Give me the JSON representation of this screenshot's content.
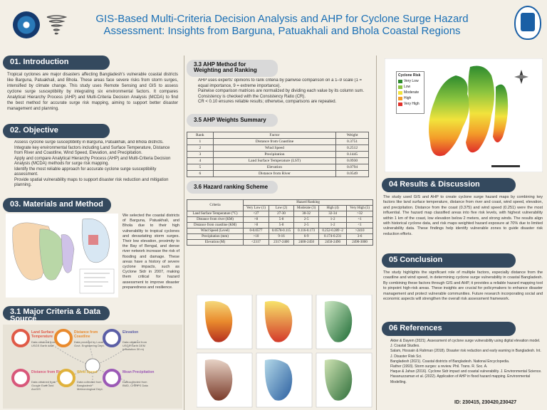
{
  "header": {
    "title_line1": "GIS-Based Multi-Criteria Decision Analysis and AHP for Cyclone Surge Hazard",
    "title_line2": "Assessment: Insights from Barguna, Patuakhali and Bhola Coastal Regions"
  },
  "intro": {
    "heading": "01. Introduction",
    "body": "Tropical cyclones are major disasters affecting Bangladesh's vulnerable coastal districts like Barguna, Patuakhali, and Bhola. These areas face severe risks from storm surges, intensified by climate change. This study uses Remote Sensing and GIS to assess cyclone surge susceptibility by integrating six environmental factors. It compares Analytical Hierarchy Process (AHP) and Multi-Criteria Decision Analysis (MCDA) to find the best method for accurate surge risk mapping, aiming to support better disaster management and planning."
  },
  "objective": {
    "heading": "02. Objective",
    "items": [
      "Assess cyclone surge susceptibility in Barguna, Patuakhali, and Bhola districts.",
      "Integrate key environmental factors including Land Surface Temperature, Distance from River and Coastline, Wind Speed, Elevation, and Precipitation.",
      "Apply and compare Analytical Hierarchy Process (AHP) and Multi-Criteria Decision Analysis (MCDA) methods for surge risk mapping.",
      "Identify the most reliable approach for accurate cyclone surge susceptibility assessment.",
      "Provide spatial vulnerability maps to support disaster risk reduction and mitigation planning."
    ]
  },
  "materials": {
    "heading": "03. Materials and Method",
    "body": "We selected the coastal districts of Barguna, Patuakhali, and Bhola due to their high vulnerability to tropical cyclones and devastating storm surges. Their low elevation, proximity to the Bay of Bengal, and dense river network increase the risk of flooding and damage. These areas have a history of severe cyclone impacts, such as Cyclone Sidr in 2007, making them critical for hazard assessment to improve disaster preparedness and resilience."
  },
  "criteria": {
    "heading": "3.1 Major Criteria & Data Source",
    "items": [
      {
        "name": "Land Surface Temperature",
        "src": "Data obtained from USGS Earth data",
        "color": "#e05a47"
      },
      {
        "name": "Distance from Coastline",
        "src": "Data provided by Local Govt. Engineering Dept.",
        "color": "#e98a2d"
      },
      {
        "name": "Elevation",
        "src": "Data obtained from USGS Earth DEM (resolution 30 m)",
        "color": "#5b5ea6"
      },
      {
        "name": "Distance from River",
        "src": "Data obtained from Google Earth and ArcGIS",
        "color": "#d8577a"
      },
      {
        "name": "Wind Speed",
        "src": "Data collected from Bangladesh Meteorological Dept.",
        "color": "#e0b23c"
      },
      {
        "name": "Mean Precipitation",
        "src": "Data collected from BMD, CHIRPS Data",
        "color": "#9b59b6"
      }
    ]
  },
  "ahp_method": {
    "heading": "3.3 AHP Method for Weighting and Ranking",
    "items": [
      "AHP uses experts' opinions to rank criteria by pairwise comparison on a 1–9 scale (1 = equal importance, 9 = extreme importance).",
      "Pairwise comparison matrices are normalized by dividing each value by its column sum.",
      "Consistency is checked with the Consistency Ratio (CR).",
      "CR < 0.10 ensures reliable results; otherwise, comparisons are repeated."
    ]
  },
  "ahp_summary": {
    "heading": "3.5 AHP Weights Summary",
    "columns": [
      "Rank",
      "Factor",
      "Weight"
    ],
    "rows": [
      [
        "1",
        "Distance from Coastline",
        "0.3751"
      ],
      [
        "2",
        "Wind Speed",
        "0.2512"
      ],
      [
        "3",
        "Precipitation",
        "0.1445"
      ],
      [
        "4",
        "Land Surface Temperature (LST)",
        "0.0930"
      ],
      [
        "5",
        "Elevation",
        "0.0794"
      ],
      [
        "6",
        "Distance from River",
        "0.0549"
      ]
    ]
  },
  "hazard_ranking": {
    "heading": "3.6 Hazard ranking Scheme",
    "top_header": "Hazard Ranking",
    "columns": [
      "Criteria",
      "Very Low (1)",
      "Low (2)",
      "Moderate (3)",
      "High (4)",
      "Very High (5)"
    ],
    "rows": [
      [
        "Land Surface Temperature (°C)",
        "<27",
        "27-30",
        "30-32",
        "32-34",
        ">32"
      ],
      [
        "Distance from river (KM)",
        ">8",
        "5-8",
        "2-5",
        "1-2",
        "<1"
      ],
      [
        "Distance from coastline (KM)",
        ">8",
        "5-8",
        "2-5",
        "1-2",
        "<1"
      ],
      [
        "Wind Speed (Level)",
        "0-0.0577",
        "0.0578-0.115",
        "0.116-0.173",
        "0.252-0.289 -2",
        ">2410"
      ],
      [
        "Precipitation (mm)",
        ">10",
        "9-16",
        "6-9",
        "0.174-0.231",
        "3-6"
      ],
      [
        "Elevation (M)",
        "<2317",
        "2317-2400",
        "2400-2450",
        "2450-2490",
        "2490-3000"
      ]
    ]
  },
  "risk_map": {
    "legend_title": "Cyclone Risk",
    "legend": [
      {
        "label": "Very Low",
        "color": "#2e8b2e"
      },
      {
        "label": "Low",
        "color": "#8bc43f"
      },
      {
        "label": "Moderate",
        "color": "#f2e33c"
      },
      {
        "label": "High",
        "color": "#f39c29"
      },
      {
        "label": "Very High",
        "color": "#e0302a"
      }
    ]
  },
  "results": {
    "heading": "04 Results & Discussion",
    "body": "The study used GIS and AHP to create cyclone surge hazard maps by combining key factors like land surface temperature, distance from river and coast, wind speed, elevation, and precipitation. Distance from the coast (0.375) and wind speed (0.251) were the most influential. The hazard map classified areas into five risk levels, with highest vulnerability within 1 km of the coast, low elevation below 2 meters, and strong winds. The results align with historical cyclone data, and risk maps weighted hazard exposure at 70% due to limited vulnerability data. These findings help identify vulnerable zones to guide disaster risk reduction efforts."
  },
  "conclusion": {
    "heading": "05 Conclusion",
    "body": "The study highlights the significant role of multiple factors, especially distance from the coastline and wind speed, in determining cyclone surge vulnerability in coastal Bangladesh. By combining these factors through GIS and AHP, it provides a reliable hazard mapping tool to pinpoint high-risk areas. These insights are crucial for policymakers to enhance disaster management and protect vulnerable communities. Future research incorporating social and economic aspects will strengthen the overall risk assessment framework."
  },
  "references": {
    "heading": "06 References",
    "items": [
      "Akter & Dayem (2021). Assessment of cyclone surge vulnerability using digital elevation model. J. Coastal Studies.",
      "Salam, Hossain & Rahman (2018). Disaster risk reduction and early warning in Bangladesh. Int. J. Disaster Risk Sci.",
      "Bangladesh (2021). Coastal districts of Bangladesh. National Encyclopedia.",
      "Flather (1993). Storm surges: a review. Phil. Trans. R. Soc. A.",
      "Haque & Jahan (2016). Cyclone Sidr impact and coastal vulnerability. J. Environmental Science.",
      "Hasanuzzaman et al. (2022). Application of AHP in flood hazard mapping. Environmental Modelling."
    ]
  },
  "ids": "ID: 230415, 230420,230427"
}
